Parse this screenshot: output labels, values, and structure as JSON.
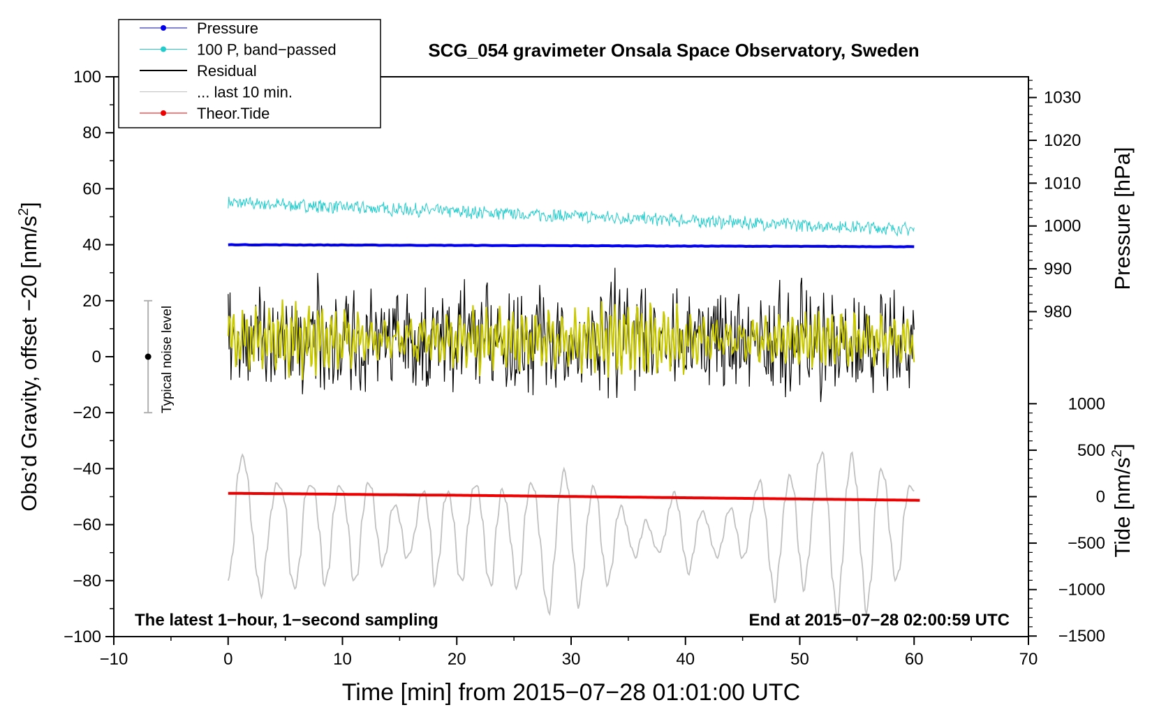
{
  "chart_data": {
    "type": "line",
    "title": "SCG_054 gravimeter Onsala Space Observatory, Sweden",
    "xlabel": "Time [min] from 2015−07−28 01:01:00 UTC",
    "ylabel_left": "Obs'd Gravity, offset −20 [nm/s²]",
    "ylabel_left_prefix": "Obs’d Gravity, offset −20 [nm/s",
    "ylabel_left_suffix": "]",
    "ylabel_pressure": "Pressure [hPa]",
    "ylabel_tide_prefix": "Tide [nm/s",
    "ylabel_tide_suffix": "]",
    "superscript": "2",
    "xlim": [
      -10,
      70
    ],
    "ylim_left": [
      -100,
      100
    ],
    "x_ticks": [
      -10,
      0,
      10,
      20,
      30,
      40,
      50,
      60,
      70
    ],
    "x_tick_labels": [
      "−10",
      "0",
      "10",
      "20",
      "30",
      "40",
      "50",
      "60",
      "70"
    ],
    "y_ticks": [
      100,
      80,
      60,
      40,
      20,
      0,
      -20,
      -40,
      -60,
      -80,
      -100
    ],
    "y_tick_labels": [
      "100",
      "80",
      "60",
      "40",
      "20",
      "0",
      "−20",
      "−40",
      "−60",
      "−80",
      "−100"
    ],
    "pressure_axis": {
      "ticks": [
        1030,
        1020,
        1010,
        1000,
        990,
        980
      ],
      "tick_labels": [
        "1030",
        "1020",
        "1010",
        "1000",
        "990",
        "980"
      ],
      "left_value_at_1000": 46.7,
      "left_units_per_hPa": 1.53
    },
    "tide_axis": {
      "ticks": [
        1000,
        500,
        0,
        -500,
        -1000,
        -1500
      ],
      "tick_labels": [
        "1000",
        "500",
        "0",
        "−500",
        "−1000",
        "−1500"
      ],
      "left_value_at_0": -50.0,
      "left_units_per_nm": 0.0332
    },
    "legend": {
      "position": "top-left",
      "entries": [
        {
          "label": "Pressure",
          "color": "#0000ee",
          "marker": true
        },
        {
          "label": "100 P, band−passed",
          "color": "#22cccc",
          "marker": true
        },
        {
          "label": "Residual",
          "color": "#000000",
          "marker": false
        },
        {
          "label": "... last 10 min.",
          "color": "#c0c0c0",
          "marker": false
        },
        {
          "label": "Theor.Tide",
          "color": "#ee0000",
          "marker": true
        }
      ]
    },
    "annotations": {
      "bottom_left": "The latest 1−hour, 1−second sampling",
      "bottom_right": "End at 2015−07−28 02:00:59 UTC",
      "noise_label": "Typical noise level",
      "noise_bar": {
        "x": -7,
        "center": 0,
        "low": -20,
        "high": 20
      }
    },
    "colors": {
      "pressure": "#0000ee",
      "bandpassed": "#22cccc",
      "residual": "#000000",
      "filtered": "#c8c800",
      "last10": "#c0c0c0",
      "tide": "#ee0000",
      "noise": "#b0b0b0"
    },
    "series": [
      {
        "name": "Pressure",
        "x_range": [
          0,
          60
        ],
        "y": [
          40.0,
          39.9,
          39.8,
          39.7,
          39.6,
          39.5,
          39.4,
          39.3
        ]
      },
      {
        "name": "100 P, band-passed",
        "x_range": [
          0,
          60
        ],
        "trend": [
          55.0,
          45.5
        ],
        "amplitude": 2.0
      },
      {
        "name": "Residual",
        "x_range": [
          0,
          60
        ],
        "mean": 6,
        "amplitude": 17
      },
      {
        "name": "... last 10 min.",
        "x_range": [
          0,
          60
        ],
        "y": [
          -80,
          -70,
          -42,
          -35,
          -42,
          -62,
          -78,
          -86,
          -70,
          -55,
          -45,
          -47,
          -53,
          -78,
          -83,
          -72,
          -50,
          -46,
          -47,
          -62,
          -82,
          -76,
          -55,
          -46,
          -48,
          -60,
          -80,
          -78,
          -57,
          -45,
          -47,
          -63,
          -75,
          -70,
          -55,
          -53,
          -60,
          -72,
          -70,
          -62,
          -50,
          -48,
          -60,
          -82,
          -72,
          -52,
          -48,
          -58,
          -78,
          -80,
          -60,
          -47,
          -46,
          -58,
          -78,
          -82,
          -60,
          -47,
          -52,
          -67,
          -83,
          -78,
          -55,
          -45,
          -48,
          -65,
          -85,
          -92,
          -72,
          -50,
          -40,
          -48,
          -72,
          -90,
          -78,
          -57,
          -46,
          -50,
          -70,
          -82,
          -75,
          -58,
          -53,
          -60,
          -68,
          -72,
          -65,
          -58,
          -62,
          -68,
          -70,
          -64,
          -54,
          -48,
          -55,
          -70,
          -78,
          -70,
          -58,
          -55,
          -60,
          -68,
          -72,
          -66,
          -56,
          -54,
          -62,
          -72,
          -70,
          -56,
          -48,
          -44,
          -56,
          -76,
          -88,
          -72,
          -52,
          -42,
          -48,
          -70,
          -84,
          -72,
          -52,
          -38,
          -34,
          -52,
          -80,
          -94,
          -74,
          -46,
          -34,
          -46,
          -72,
          -92,
          -80,
          -52,
          -40,
          -44,
          -64,
          -80,
          -76,
          -55,
          -46,
          -48
        ]
      },
      {
        "name": "Theor.Tide",
        "x_range": [
          0,
          60.5
        ],
        "y": [
          -48.8,
          -49.0,
          -49.3,
          -49.5,
          -49.8,
          -50.1,
          -50.4,
          -50.7,
          -51.0,
          -51.3
        ]
      }
    ]
  }
}
